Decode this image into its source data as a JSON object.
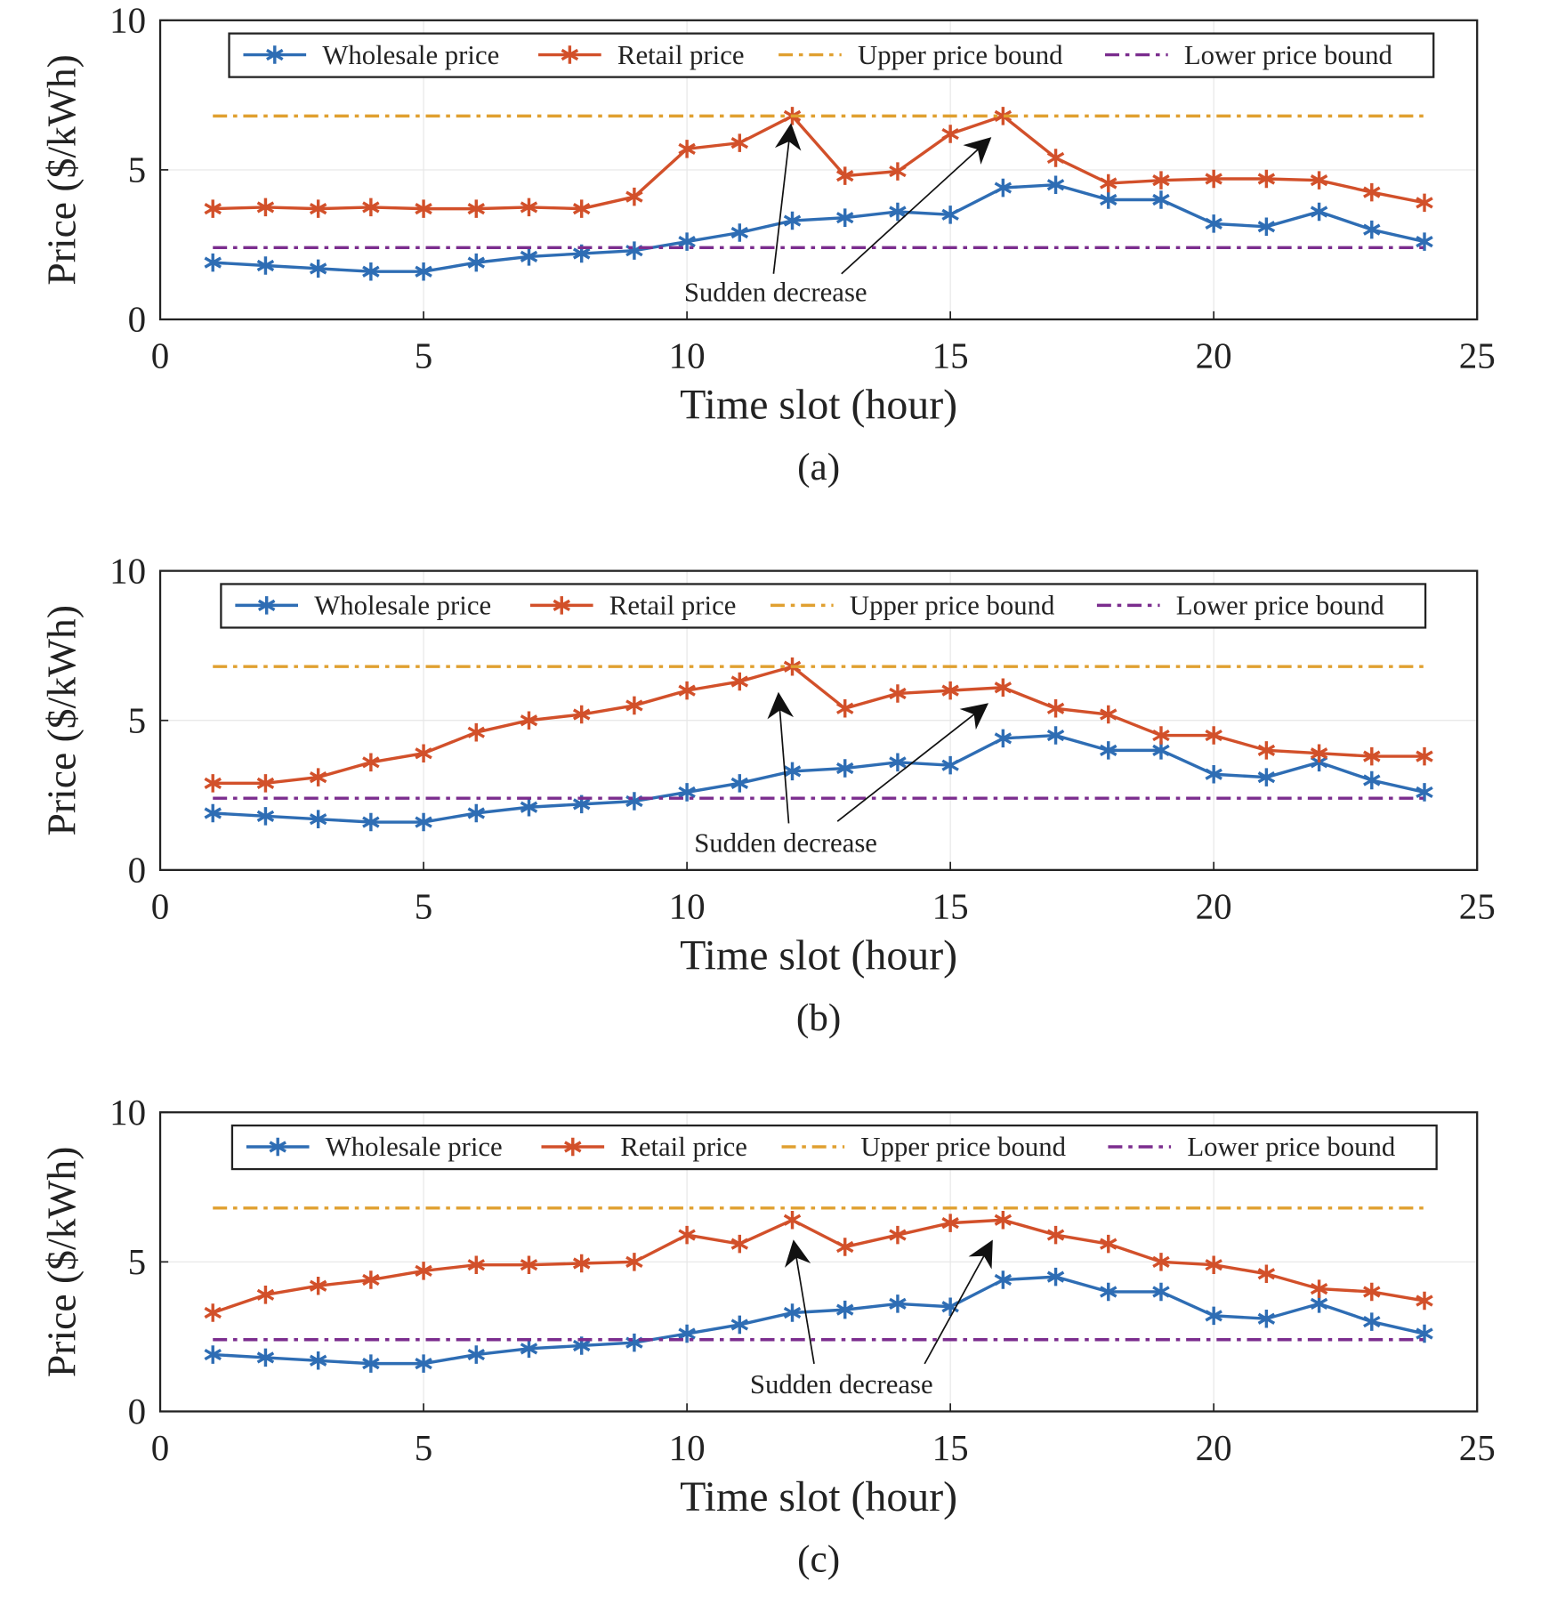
{
  "chart_data": [
    {
      "type": "line",
      "caption": "(a)",
      "xlabel": "Time slot (hour)",
      "ylabel": "Price ($/kWh)",
      "annotation": "Sudden decrease",
      "x": [
        1,
        2,
        3,
        4,
        5,
        6,
        7,
        8,
        9,
        10,
        11,
        12,
        13,
        14,
        15,
        16,
        17,
        18,
        19,
        20,
        21,
        22,
        23,
        24
      ],
      "xlim": [
        0,
        25
      ],
      "ylim": [
        0,
        10
      ],
      "xticks": [
        0,
        5,
        10,
        15,
        20,
        25
      ],
      "yticks": [
        0,
        5,
        10
      ],
      "grid": true,
      "series": [
        {
          "name": "Wholesale price",
          "color": "#2e6db4",
          "linestyle": "solid",
          "marker": "asterisk",
          "values": [
            1.9,
            1.8,
            1.7,
            1.6,
            1.6,
            1.9,
            2.1,
            2.2,
            2.3,
            2.6,
            2.9,
            3.3,
            3.4,
            3.6,
            3.5,
            4.4,
            4.5,
            4.0,
            4.0,
            3.2,
            3.1,
            3.6,
            3.0,
            2.6
          ]
        },
        {
          "name": "Retail price",
          "color": "#d2502a",
          "linestyle": "solid",
          "marker": "asterisk",
          "values": [
            3.7,
            3.75,
            3.7,
            3.75,
            3.7,
            3.7,
            3.75,
            3.7,
            4.1,
            5.7,
            5.9,
            6.8,
            4.8,
            4.95,
            6.2,
            6.8,
            5.4,
            4.55,
            4.65,
            4.7,
            4.7,
            4.65,
            4.25,
            3.9
          ]
        },
        {
          "name": "Upper price bound",
          "color": "#e0a030",
          "linestyle": "dashdot",
          "marker": null,
          "values": [
            6.8,
            6.8,
            6.8,
            6.8,
            6.8,
            6.8,
            6.8,
            6.8,
            6.8,
            6.8,
            6.8,
            6.8,
            6.8,
            6.8,
            6.8,
            6.8,
            6.8,
            6.8,
            6.8,
            6.8,
            6.8,
            6.8,
            6.8,
            6.8
          ]
        },
        {
          "name": "Lower price bound",
          "color": "#7b2d8e",
          "linestyle": "dashdot",
          "marker": null,
          "values": [
            2.4,
            2.4,
            2.4,
            2.4,
            2.4,
            2.4,
            2.4,
            2.4,
            2.4,
            2.4,
            2.4,
            2.4,
            2.4,
            2.4,
            2.4,
            2.4,
            2.4,
            2.4,
            2.4,
            2.4,
            2.4,
            2.4,
            2.4,
            2.4
          ]
        }
      ]
    },
    {
      "type": "line",
      "caption": "(b)",
      "xlabel": "Time slot (hour)",
      "ylabel": "Price ($/kWh)",
      "annotation": "Sudden decrease",
      "x": [
        1,
        2,
        3,
        4,
        5,
        6,
        7,
        8,
        9,
        10,
        11,
        12,
        13,
        14,
        15,
        16,
        17,
        18,
        19,
        20,
        21,
        22,
        23,
        24
      ],
      "xlim": [
        0,
        25
      ],
      "ylim": [
        0,
        10
      ],
      "xticks": [
        0,
        5,
        10,
        15,
        20,
        25
      ],
      "yticks": [
        0,
        5,
        10
      ],
      "grid": true,
      "series": [
        {
          "name": "Wholesale price",
          "color": "#2e6db4",
          "linestyle": "solid",
          "marker": "asterisk",
          "values": [
            1.9,
            1.8,
            1.7,
            1.6,
            1.6,
            1.9,
            2.1,
            2.2,
            2.3,
            2.6,
            2.9,
            3.3,
            3.4,
            3.6,
            3.5,
            4.4,
            4.5,
            4.0,
            4.0,
            3.2,
            3.1,
            3.6,
            3.0,
            2.6
          ]
        },
        {
          "name": "Retail price",
          "color": "#d2502a",
          "linestyle": "solid",
          "marker": "asterisk",
          "values": [
            2.9,
            2.9,
            3.1,
            3.6,
            3.9,
            4.6,
            5.0,
            5.2,
            5.5,
            6.0,
            6.3,
            6.8,
            5.4,
            5.9,
            6.0,
            6.1,
            5.4,
            5.2,
            4.5,
            4.5,
            4.0,
            3.9,
            3.8,
            3.8
          ]
        },
        {
          "name": "Upper price bound",
          "color": "#e0a030",
          "linestyle": "dashdot",
          "marker": null,
          "values": [
            6.8,
            6.8,
            6.8,
            6.8,
            6.8,
            6.8,
            6.8,
            6.8,
            6.8,
            6.8,
            6.8,
            6.8,
            6.8,
            6.8,
            6.8,
            6.8,
            6.8,
            6.8,
            6.8,
            6.8,
            6.8,
            6.8,
            6.8,
            6.8
          ]
        },
        {
          "name": "Lower price bound",
          "color": "#7b2d8e",
          "linestyle": "dashdot",
          "marker": null,
          "values": [
            2.4,
            2.4,
            2.4,
            2.4,
            2.4,
            2.4,
            2.4,
            2.4,
            2.4,
            2.4,
            2.4,
            2.4,
            2.4,
            2.4,
            2.4,
            2.4,
            2.4,
            2.4,
            2.4,
            2.4,
            2.4,
            2.4,
            2.4,
            2.4
          ]
        }
      ]
    },
    {
      "type": "line",
      "caption": "(c)",
      "xlabel": "Time slot (hour)",
      "ylabel": "Price ($/kWh)",
      "annotation": "Sudden decrease",
      "x": [
        1,
        2,
        3,
        4,
        5,
        6,
        7,
        8,
        9,
        10,
        11,
        12,
        13,
        14,
        15,
        16,
        17,
        18,
        19,
        20,
        21,
        22,
        23,
        24
      ],
      "xlim": [
        0,
        25
      ],
      "ylim": [
        0,
        10
      ],
      "xticks": [
        0,
        5,
        10,
        15,
        20,
        25
      ],
      "yticks": [
        0,
        5,
        10
      ],
      "grid": true,
      "series": [
        {
          "name": "Wholesale price",
          "color": "#2e6db4",
          "linestyle": "solid",
          "marker": "asterisk",
          "values": [
            1.9,
            1.8,
            1.7,
            1.6,
            1.6,
            1.9,
            2.1,
            2.2,
            2.3,
            2.6,
            2.9,
            3.3,
            3.4,
            3.6,
            3.5,
            4.4,
            4.5,
            4.0,
            4.0,
            3.2,
            3.1,
            3.6,
            3.0,
            2.6
          ]
        },
        {
          "name": "Retail price",
          "color": "#d2502a",
          "linestyle": "solid",
          "marker": "asterisk",
          "values": [
            3.3,
            3.9,
            4.2,
            4.4,
            4.7,
            4.9,
            4.9,
            4.95,
            5.0,
            5.9,
            5.6,
            6.4,
            5.5,
            5.9,
            6.3,
            6.4,
            5.9,
            5.6,
            5.0,
            4.9,
            4.6,
            4.1,
            4.0,
            3.7
          ]
        },
        {
          "name": "Upper price bound",
          "color": "#e0a030",
          "linestyle": "dashdot",
          "marker": null,
          "values": [
            6.8,
            6.8,
            6.8,
            6.8,
            6.8,
            6.8,
            6.8,
            6.8,
            6.8,
            6.8,
            6.8,
            6.8,
            6.8,
            6.8,
            6.8,
            6.8,
            6.8,
            6.8,
            6.8,
            6.8,
            6.8,
            6.8,
            6.8,
            6.8
          ]
        },
        {
          "name": "Lower price bound",
          "color": "#7b2d8e",
          "linestyle": "dashdot",
          "marker": null,
          "values": [
            2.4,
            2.4,
            2.4,
            2.4,
            2.4,
            2.4,
            2.4,
            2.4,
            2.4,
            2.4,
            2.4,
            2.4,
            2.4,
            2.4,
            2.4,
            2.4,
            2.4,
            2.4,
            2.4,
            2.4,
            2.4,
            2.4,
            2.4,
            2.4
          ]
        }
      ]
    }
  ]
}
